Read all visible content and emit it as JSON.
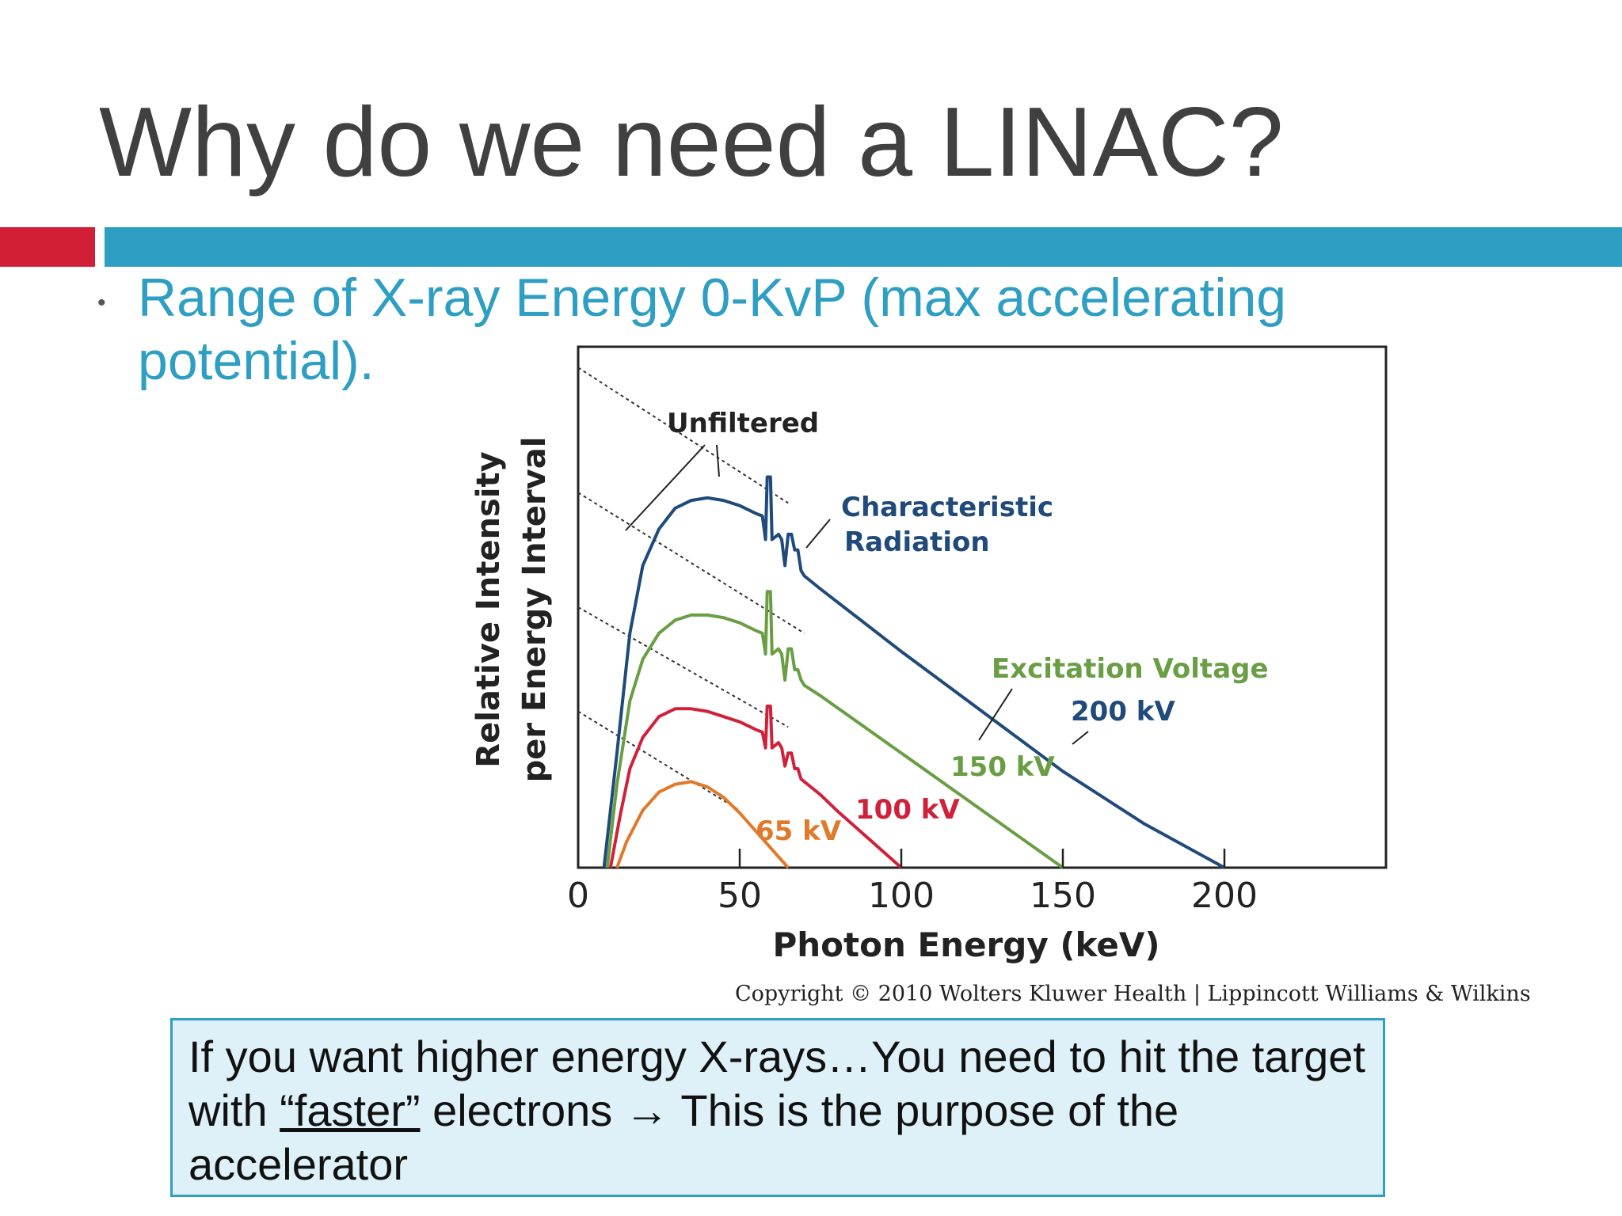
{
  "slide": {
    "title": "Why do we need a LINAC?",
    "bullet": "Range of X-ray Energy 0-KvP (max accelerating potential).",
    "colors": {
      "accent_red": "#d31f35",
      "accent_blue": "#2e9fc3",
      "title": "#404040"
    }
  },
  "figure": {
    "copyright": "Copyright © 2010 Wolters Kluwer Health | Lippincott Williams & Wilkins",
    "annotations": {
      "unfiltered": "Unfiltered",
      "characteristic_1": "Characteristic",
      "characteristic_2": "Radiation",
      "excitation": "Excitation Voltage"
    }
  },
  "chart_data": {
    "type": "line",
    "xlabel": "Photon Energy (keV)",
    "ylabel_line1": "Relative Intensity",
    "ylabel_line2": "per Energy Interval",
    "xlim": [
      0,
      250
    ],
    "ylim": [
      0,
      100
    ],
    "x_ticks": [
      0,
      50,
      100,
      150,
      200
    ],
    "x_tick_labels": [
      "0",
      "50",
      "100",
      "150",
      "200"
    ],
    "grid": false,
    "legend": "none",
    "series": [
      {
        "name": "200 kV",
        "color": "#1f4a7a",
        "x": [
          8,
          12,
          16,
          20,
          25,
          30,
          35,
          40,
          45,
          50,
          55,
          57,
          58,
          58.5,
          59.5,
          60,
          62,
          63,
          64,
          65,
          66,
          67,
          68,
          69,
          70,
          75,
          100,
          125,
          150,
          175,
          200
        ],
        "y": [
          0,
          22,
          45,
          58,
          65,
          69,
          70.5,
          71,
          70.5,
          69.5,
          68,
          67.5,
          63,
          75,
          75,
          63,
          64,
          63,
          58,
          64,
          64,
          61,
          61,
          57,
          56,
          53.5,
          41.5,
          30,
          18.5,
          8.5,
          0
        ]
      },
      {
        "name": "150 kV",
        "color": "#6a9e45",
        "x": [
          9,
          12,
          16,
          20,
          25,
          30,
          35,
          40,
          45,
          50,
          55,
          57,
          58,
          58.5,
          59.5,
          60,
          62,
          63,
          64,
          65,
          66,
          67,
          68,
          69,
          70,
          75,
          100,
          125,
          150
        ],
        "y": [
          0,
          16,
          32,
          40,
          45,
          47.5,
          48.5,
          48.5,
          48,
          47,
          45.5,
          45,
          41,
          53,
          53,
          41,
          42,
          41,
          36,
          42,
          42,
          38,
          38,
          36,
          35,
          33,
          22,
          11,
          0
        ]
      },
      {
        "name": "100 kV",
        "color": "#d0213a",
        "x": [
          10,
          13,
          16,
          20,
          25,
          30,
          35,
          40,
          45,
          50,
          55,
          57,
          58,
          58.5,
          59.5,
          60,
          62,
          63,
          64,
          65,
          66,
          67,
          68,
          69,
          70,
          75,
          80,
          90,
          100
        ],
        "y": [
          0,
          10,
          19,
          25,
          29,
          30.5,
          30.5,
          30,
          29,
          28,
          26.5,
          26,
          23,
          31,
          31,
          23,
          24,
          23,
          19.5,
          22,
          22,
          19,
          19,
          17,
          16.5,
          14,
          11,
          5.5,
          0
        ]
      },
      {
        "name": "65 kV",
        "color": "#e07a2a",
        "x": [
          12,
          15,
          20,
          25,
          30,
          35,
          40,
          45,
          50,
          55,
          60,
          65
        ],
        "y": [
          0,
          5,
          11,
          14.5,
          16,
          16.5,
          15.5,
          13.5,
          10.5,
          7,
          3.5,
          0
        ]
      }
    ],
    "unfiltered_lines": [
      {
        "x": [
          0,
          65
        ],
        "y": [
          96,
          70
        ]
      },
      {
        "x": [
          0,
          70
        ],
        "y": [
          72,
          45
        ]
      },
      {
        "x": [
          0,
          65
        ],
        "y": [
          50,
          27
        ]
      },
      {
        "x": [
          0,
          50
        ],
        "y": [
          30,
          11
        ]
      }
    ],
    "annotations": [
      {
        "text": "200 kV",
        "color": "#1f4a7a"
      },
      {
        "text": "150 kV",
        "color": "#6a9e45"
      },
      {
        "text": "100 kV",
        "color": "#d0213a"
      },
      {
        "text": "65 kV",
        "color": "#e07a2a"
      }
    ]
  },
  "callout": {
    "text_1": "If you want higher energy X-rays…You need to hit the target with ",
    "underlined": "“faster”",
    "text_2": " electrons → This is the purpose of the accelerator"
  }
}
